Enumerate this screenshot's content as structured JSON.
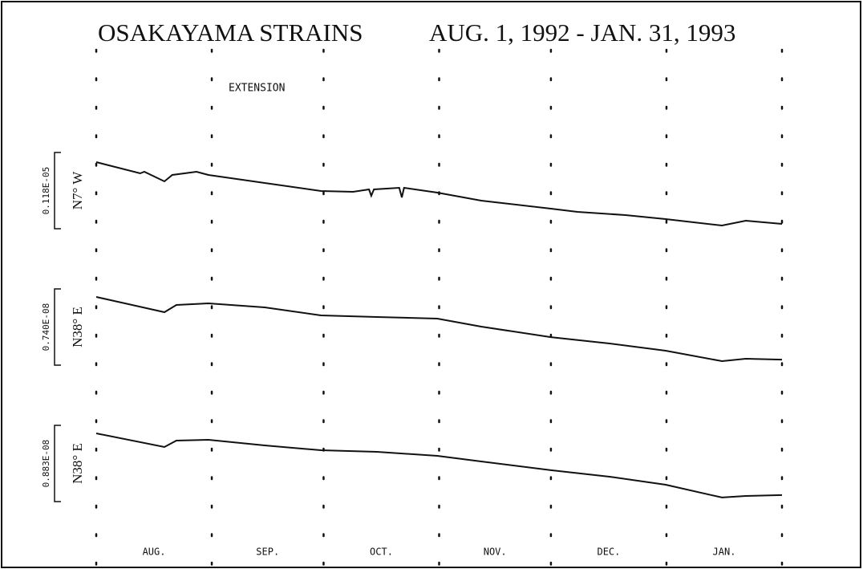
{
  "chart_data": {
    "type": "line",
    "title": "OSAKAYAMA STRAINS",
    "subtitle": "AUG. 1, 1992 - JAN. 31, 1993",
    "annotation": "EXTENSION",
    "categories": [
      "AUG.",
      "SEP.",
      "OCT.",
      "NOV.",
      "DEC.",
      "JAN."
    ],
    "xlim": [
      0,
      184
    ],
    "xticks": [
      0,
      31,
      61,
      92,
      122,
      153,
      184
    ],
    "color": "#111111",
    "series": [
      {
        "name": "N7° W",
        "scale": {
          "value": 1.18e-06,
          "label": "0.118E-05"
        },
        "x": [
          0,
          11.8,
          12.9,
          18.3,
          20.4,
          26.9,
          30.1,
          45.2,
          60.3,
          68.9,
          73.2,
          73.8,
          74.5,
          81.3,
          82,
          82.6,
          91.5,
          103.3,
          122,
          129.1,
          142,
          152.8,
          167.9,
          174.3,
          184
        ],
        "values": [
          0,
          -1.74e-07,
          -1.49e-07,
          -2.98e-07,
          -1.99e-07,
          -1.49e-07,
          -1.99e-07,
          -3.23e-07,
          -4.47e-07,
          -4.6e-07,
          -4.22e-07,
          -5.22e-07,
          -4.22e-07,
          -3.97e-07,
          -5.46e-07,
          -3.97e-07,
          -4.72e-07,
          -5.96e-07,
          -7.2e-07,
          -7.7e-07,
          -8.2e-07,
          -8.82e-07,
          -9.81e-07,
          -9.07e-07,
          -9.56e-07
        ]
      },
      {
        "name": "N38° E",
        "scale": {
          "value": 7.4e-09,
          "label": "0.740E-08"
        },
        "x": [
          0,
          18.3,
          21.5,
          30.1,
          45.2,
          60.3,
          75.3,
          91.5,
          103.3,
          122,
          137.7,
          152.8,
          167.9,
          174.3,
          184
        ],
        "values": [
          0,
          -1.48e-09,
          -7.8e-10,
          -6.2e-10,
          -1.01e-09,
          -1.79e-09,
          -1.95e-09,
          -2.1e-09,
          -2.88e-09,
          -3.9e-09,
          -4.52e-09,
          -5.22e-09,
          -6.23e-09,
          -6e-09,
          -6.08e-09
        ]
      },
      {
        "name": "N38° E",
        "scale": {
          "value": 8.83e-09,
          "label": "0.883E-08"
        },
        "x": [
          0,
          18.3,
          21.5,
          30.1,
          45.2,
          60.3,
          75.3,
          91.5,
          103.3,
          122,
          137.7,
          152.8,
          167.9,
          174.3,
          184
        ],
        "values": [
          0,
          -1.58e-09,
          -8.4e-10,
          -7.4e-10,
          -1.39e-09,
          -1.95e-09,
          -2.14e-09,
          -2.6e-09,
          -3.25e-09,
          -4.27e-09,
          -5.02e-09,
          -5.95e-09,
          -7.43e-09,
          -7.25e-09,
          -7.15e-09
        ]
      }
    ]
  }
}
